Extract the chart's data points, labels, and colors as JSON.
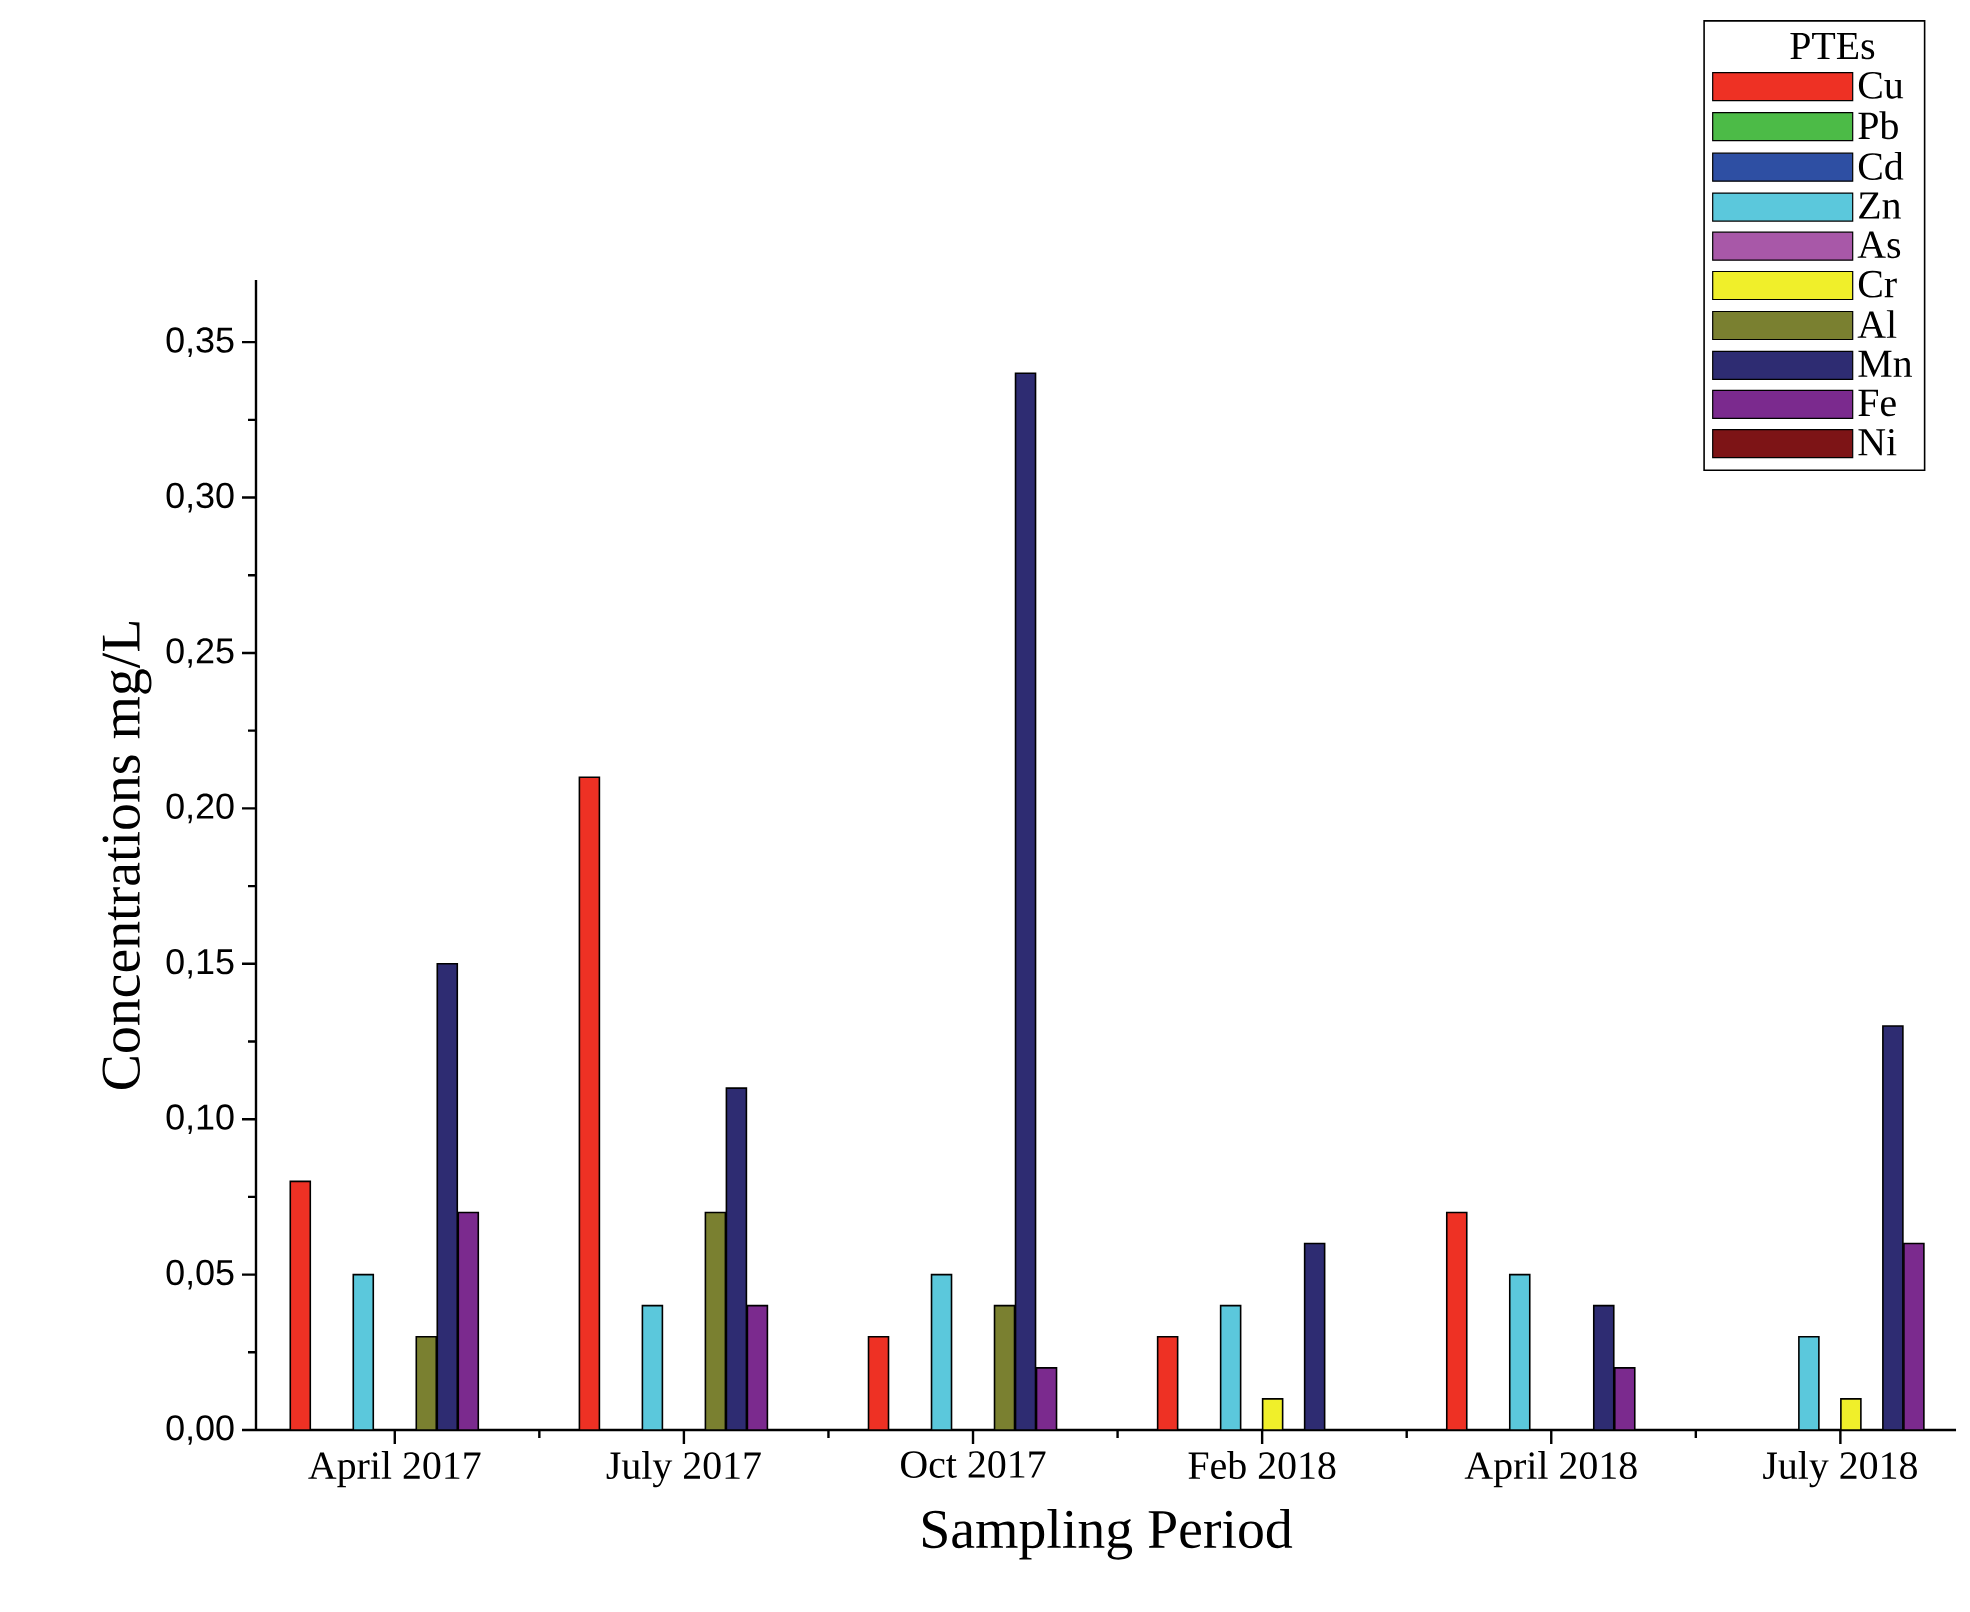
{
  "chart_data": {
    "type": "bar",
    "xlabel": "Sampling Period",
    "ylabel": "Concentrations mg/L",
    "legend_title": "PTEs",
    "legend": "top right",
    "categories": [
      "April 2017",
      "July 2017",
      "Oct 2017",
      "Feb 2018",
      "April 2018",
      "July 2018"
    ],
    "ylim": [
      0,
      0.37
    ],
    "yticks": [
      {
        "value": 0,
        "label": "0,00"
      },
      {
        "value": 0.05,
        "label": "0,05"
      },
      {
        "value": 0.1,
        "label": "0,10"
      },
      {
        "value": 0.15,
        "label": "0,15"
      },
      {
        "value": 0.2,
        "label": "0,20"
      },
      {
        "value": 0.25,
        "label": "0,25"
      },
      {
        "value": 0.3,
        "label": "0,30"
      },
      {
        "value": 0.35,
        "label": "0,35"
      }
    ],
    "series": [
      {
        "name": "Cu",
        "color": "#ee3124",
        "values": [
          0.08,
          0.21,
          0.03,
          0.03,
          0.07,
          null
        ]
      },
      {
        "name": "Pb",
        "color": "#4cbb47",
        "values": [
          null,
          null,
          null,
          null,
          null,
          null
        ]
      },
      {
        "name": "Cd",
        "color": "#2e4fa3",
        "values": [
          null,
          null,
          null,
          null,
          null,
          null
        ]
      },
      {
        "name": "Zn",
        "color": "#5bc8dc",
        "values": [
          0.05,
          0.04,
          0.05,
          0.04,
          0.05,
          0.03
        ]
      },
      {
        "name": "As",
        "color": "#a858a8",
        "values": [
          null,
          null,
          null,
          null,
          null,
          null
        ]
      },
      {
        "name": "Cr",
        "color": "#f0ef2a",
        "values": [
          null,
          null,
          null,
          0.01,
          null,
          0.01
        ]
      },
      {
        "name": "Al",
        "color": "#7a8030",
        "values": [
          0.03,
          0.07,
          0.04,
          null,
          null,
          null
        ]
      },
      {
        "name": "Mn",
        "color": "#2e2c72",
        "values": [
          0.15,
          0.11,
          0.34,
          0.06,
          0.04,
          0.13
        ]
      },
      {
        "name": "Fe",
        "color": "#7b2a8e",
        "values": [
          0.07,
          0.04,
          0.02,
          null,
          0.02,
          0.06
        ]
      },
      {
        "name": "Ni",
        "color": "#7d1416",
        "values": [
          null,
          null,
          null,
          null,
          null,
          null
        ]
      }
    ]
  }
}
